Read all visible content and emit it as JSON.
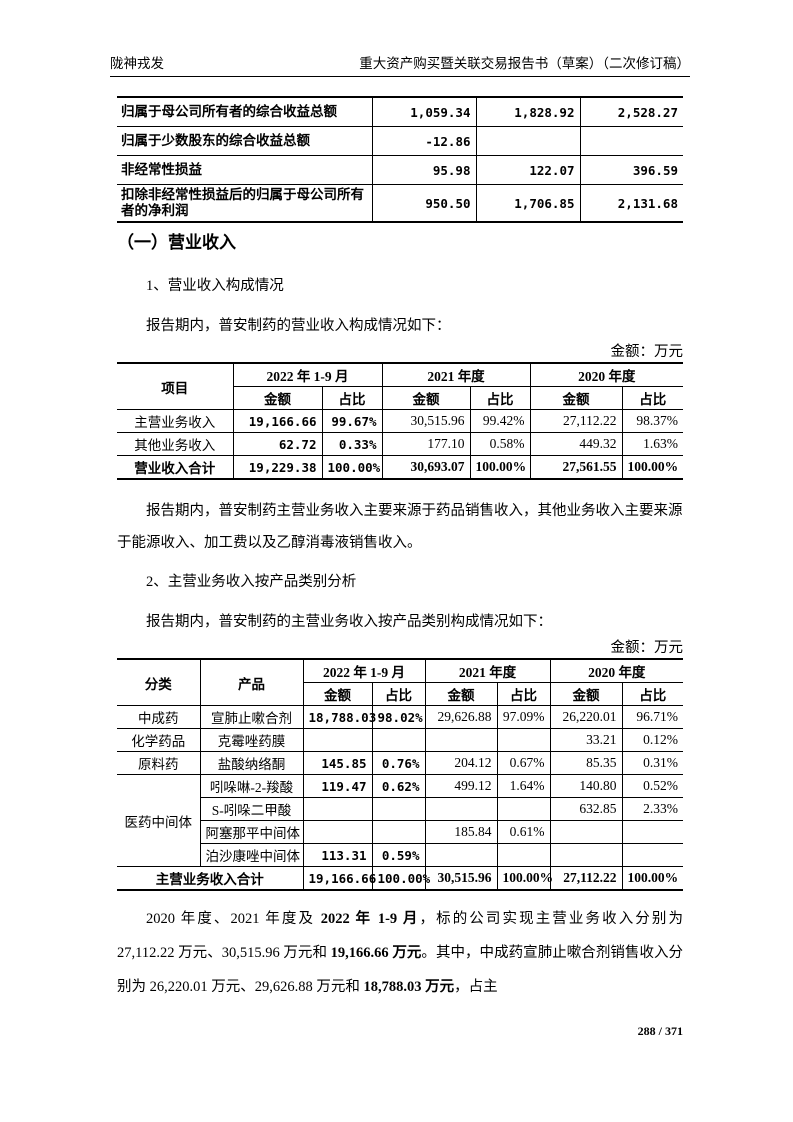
{
  "header": {
    "left": "陇神戎发",
    "right": "重大资产购买暨关联交易报告书（草案）（二次修订稿）"
  },
  "table_top": {
    "rows": [
      {
        "label": "归属于母公司所有者的综合收益总额",
        "values": [
          "1,059.34",
          "1,828.92",
          "2,528.27"
        ]
      },
      {
        "label": "归属于少数股东的综合收益总额",
        "values": [
          "-12.86",
          null,
          null
        ]
      },
      {
        "label": "非经常性损益",
        "values": [
          "95.98",
          "122.07",
          "396.59"
        ]
      },
      {
        "label": "扣除非经常性损益后的归属于母公司所有者的净利润",
        "values": [
          "950.50",
          "1,706.85",
          "2,131.68"
        ]
      }
    ]
  },
  "section_heading": "（一）营业收入",
  "subsection_1": {
    "title": "1、营业收入构成情况",
    "intro": "报告期内，普安制药的营业收入构成情况如下：",
    "unit": "金额：万元",
    "table": {
      "header": {
        "item": "项目",
        "periods": [
          "2022 年 1-9 月",
          "2021 年度",
          "2020 年度"
        ],
        "subcolumns": [
          "金额",
          "占比"
        ]
      },
      "rows": [
        {
          "label": "主营业务收入",
          "values": [
            "19,166.66",
            "99.67%",
            "30,515.96",
            "99.42%",
            "27,112.22",
            "98.37%"
          ]
        },
        {
          "label": "其他业务收入",
          "values": [
            "62.72",
            "0.33%",
            "177.10",
            "0.58%",
            "449.32",
            "1.63%"
          ]
        }
      ],
      "total": {
        "label": "营业收入合计",
        "values": [
          "19,229.38",
          "100.00%",
          "30,693.07",
          "100.00%",
          "27,561.55",
          "100.00%"
        ]
      }
    }
  },
  "note_1": "报告期内，普安制药主营业务收入主要来源于药品销售收入，其他业务收入主要来源于能源收入、加工费以及乙醇消毒液销售收入。",
  "subsection_2": {
    "title": "2、主营业务收入按产品类别分析",
    "intro": "报告期内，普安制药的主营业务收入按产品类别构成情况如下：",
    "unit": "金额：万元",
    "table": {
      "header": {
        "category": "分类",
        "product": "产品",
        "periods": [
          "2022 年 1-9 月",
          "2021 年度",
          "2020 年度"
        ],
        "subcolumns": [
          "金额",
          "占比"
        ]
      },
      "groups": [
        {
          "category": "中成药",
          "items": [
            {
              "product": "宣肺止嗽合剂",
              "values": [
                "18,788.03",
                "98.02%",
                "29,626.88",
                "97.09%",
                "26,220.01",
                "96.71%"
              ]
            }
          ]
        },
        {
          "category": "化学药品",
          "items": [
            {
              "product": "克霉唑药膜",
              "values": [
                null,
                null,
                null,
                null,
                "33.21",
                "0.12%"
              ]
            }
          ]
        },
        {
          "category": "原料药",
          "items": [
            {
              "product": "盐酸纳络酮",
              "values": [
                "145.85",
                "0.76%",
                "204.12",
                "0.67%",
                "85.35",
                "0.31%"
              ]
            }
          ]
        },
        {
          "category": "医药中间体",
          "items": [
            {
              "product": "吲哚啉-2-羧酸",
              "values": [
                "119.47",
                "0.62%",
                "499.12",
                "1.64%",
                "140.80",
                "0.52%"
              ]
            },
            {
              "product": "S-吲哚二甲酸",
              "values": [
                null,
                null,
                null,
                null,
                "632.85",
                "2.33%"
              ]
            },
            {
              "product": "阿塞那平中间体",
              "values": [
                null,
                null,
                "185.84",
                "0.61%",
                null,
                null
              ]
            },
            {
              "product": "泊沙康唑中间体",
              "values": [
                "113.31",
                "0.59%",
                null,
                null,
                null,
                null
              ]
            }
          ]
        }
      ],
      "total": {
        "label": "主营业务收入合计",
        "values": [
          "19,166.66",
          "100.00%",
          "30,515.96",
          "100.00%",
          "27,112.22",
          "100.00%"
        ]
      }
    }
  },
  "closing_paragraph": {
    "runs": [
      {
        "text": "2020 年度、2021 年度及 "
      },
      {
        "text": "2022 年 1-9 月",
        "bold": true
      },
      {
        "text": "，标的公司实现主营业务收入分别为 27,112.22 万元、30,515.96 万元和 "
      },
      {
        "text": "19,166.66 万元",
        "bold": true
      },
      {
        "text": "。其中，中成药宣肺止嗽合剂销售收入分别为 26,220.01 万元、29,626.88 万元和 "
      },
      {
        "text": "18,788.03 万元",
        "bold": true
      },
      {
        "text": "，占主"
      }
    ]
  },
  "footer": {
    "page": "288 / 371"
  }
}
